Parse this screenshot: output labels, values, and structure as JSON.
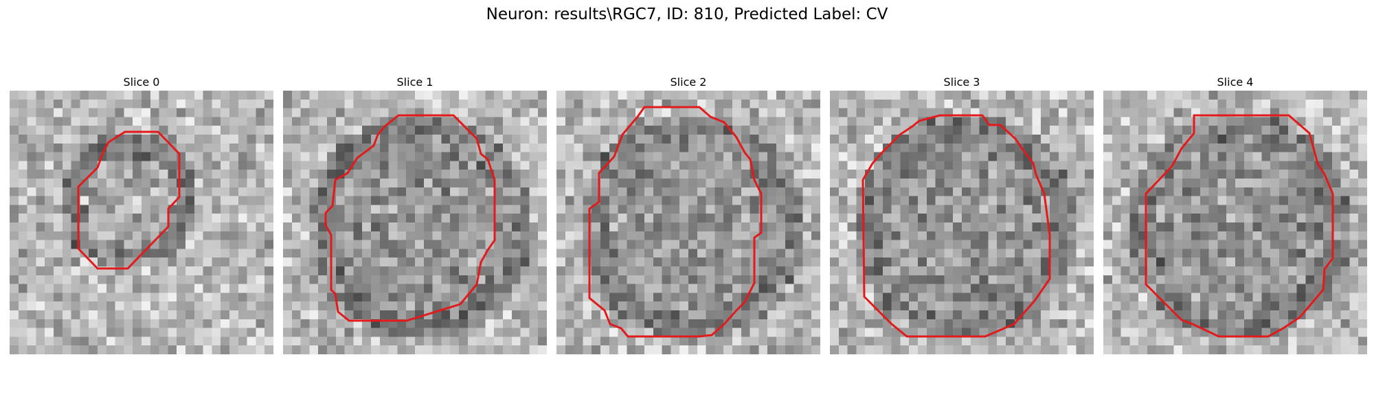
{
  "figure": {
    "title": "Neuron: results\\RGC7, ID: 810, Predicted Label: CV"
  },
  "panels": [
    {
      "title": "Slice 0",
      "outline_icon": "red-contour-outline",
      "seed": 11
    },
    {
      "title": "Slice 1",
      "outline_icon": "red-contour-outline",
      "seed": 23
    },
    {
      "title": "Slice 2",
      "outline_icon": "red-contour-outline",
      "seed": 37
    },
    {
      "title": "Slice 3",
      "outline_icon": "red-contour-outline",
      "seed": 53
    },
    {
      "title": "Slice 4",
      "outline_icon": "red-contour-outline",
      "seed": 71
    }
  ],
  "colors": {
    "contour": "#e31a1c",
    "background": "#ffffff"
  }
}
